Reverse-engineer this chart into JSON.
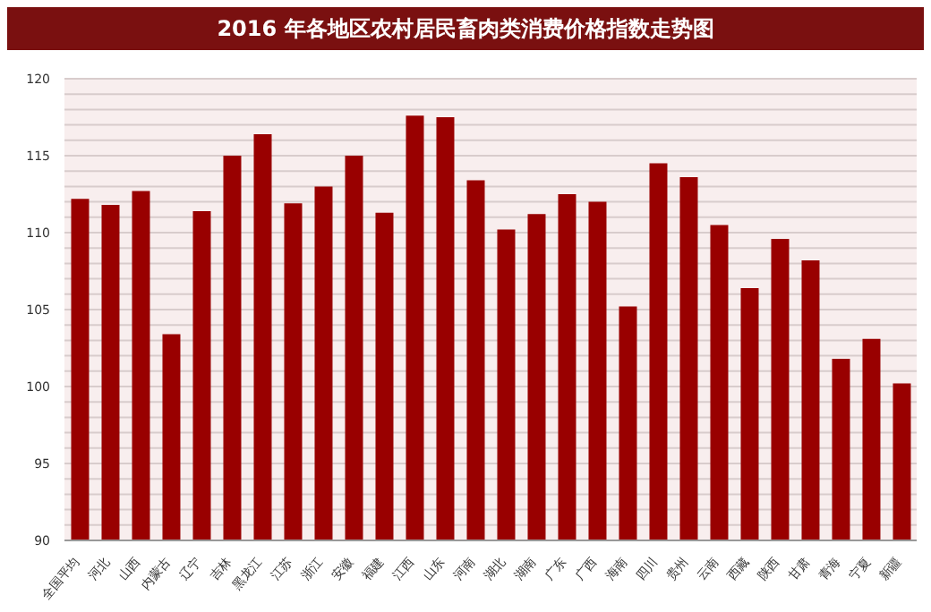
{
  "chart_data": {
    "type": "bar",
    "title": "2016 年各地区农村居民畜肉类消费价格指数走势图",
    "categories": [
      "全国平均",
      "河北",
      "山西",
      "内蒙古",
      "辽宁",
      "吉林",
      "黑龙江",
      "江苏",
      "浙江",
      "安徽",
      "福建",
      "江西",
      "山东",
      "河南",
      "湖北",
      "湖南",
      "广东",
      "广西",
      "海南",
      "四川",
      "贵州",
      "云南",
      "西藏",
      "陕西",
      "甘肃",
      "青海",
      "宁夏",
      "新疆"
    ],
    "values": [
      112.2,
      111.8,
      112.7,
      103.4,
      111.4,
      115.0,
      116.4,
      111.9,
      113.0,
      115.0,
      111.3,
      117.6,
      117.5,
      113.4,
      110.2,
      111.2,
      112.5,
      112.0,
      105.2,
      114.5,
      113.6,
      110.5,
      106.4,
      109.6,
      108.2,
      101.8,
      103.1,
      100.2
    ],
    "color": "#990000",
    "ylim": [
      90,
      120
    ],
    "yticks": [
      90,
      {
        "value": 91,
        "label": null
      },
      {
        "value": 92,
        "label": null
      },
      {
        "value": 93,
        "label": null
      },
      {
        "value": 94,
        "label": null
      },
      95,
      {
        "value": 96,
        "label": null
      },
      {
        "value": 97,
        "label": null
      },
      {
        "value": 98,
        "label": null
      },
      {
        "value": 99,
        "label": null
      },
      100,
      {
        "value": 101,
        "label": null
      },
      {
        "value": 102,
        "label": null
      },
      {
        "value": 103,
        "label": null
      },
      {
        "value": 104,
        "label": null
      },
      105,
      {
        "value": 106,
        "label": null
      },
      {
        "value": 107,
        "label": null
      },
      {
        "value": 108,
        "label": null
      },
      {
        "value": 109,
        "label": null
      },
      110,
      {
        "value": 111,
        "label": null
      },
      {
        "value": 112,
        "label": null
      },
      {
        "value": 113,
        "label": null
      },
      {
        "value": 114,
        "label": null
      },
      115,
      {
        "value": 116,
        "label": null
      },
      {
        "value": 117,
        "label": null
      },
      {
        "value": 118,
        "label": null
      },
      {
        "value": 119,
        "label": null
      },
      120
    ],
    "grid": "y"
  }
}
